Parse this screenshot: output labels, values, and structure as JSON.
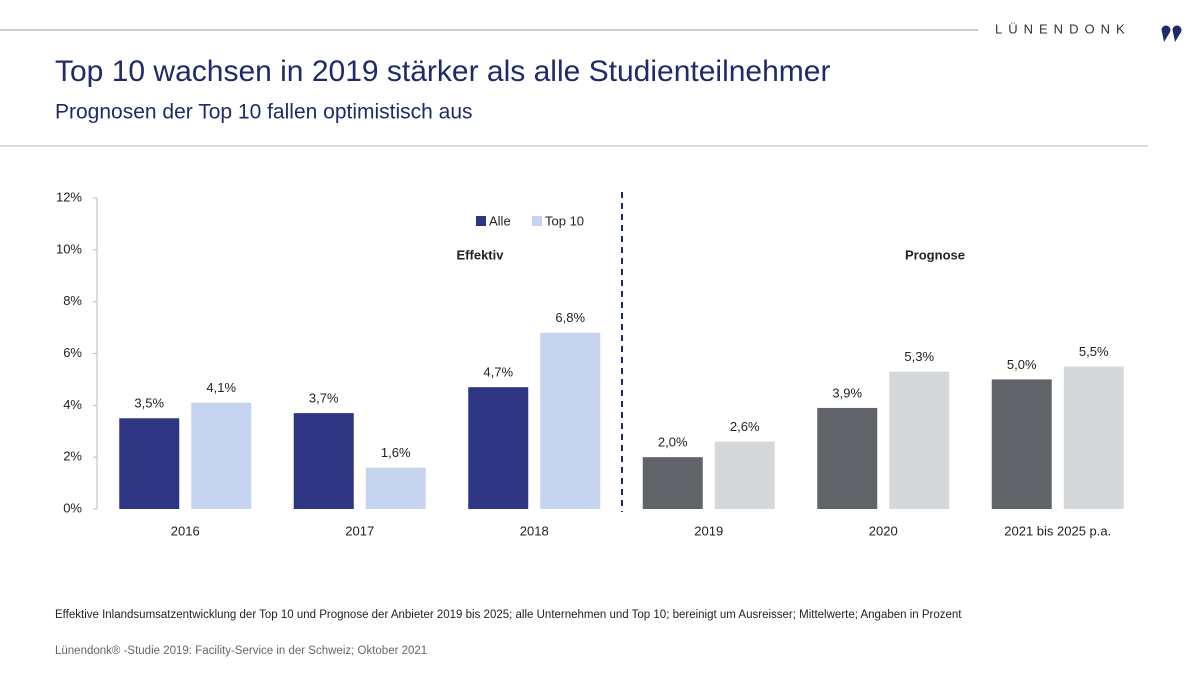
{
  "logo": "LÜNENDONK",
  "footnote": "Effektive Inlandsumsatzentwicklung der Top 10 und Prognose der Anbieter 2019 bis 2025; alle Unternehmen und Top 10; bereinigt um Ausreisser; Mittelwerte; Angaben in Prozent",
  "source": "Lünendonk® -Studie 2019: Facility-Service in der Schweiz; Oktober 2021",
  "chart_data": {
    "type": "bar",
    "title": "Top 10 wachsen in 2019 stärker als alle Studienteilnehmer",
    "subtitle": "Prognosen der Top 10 fallen optimistisch aus",
    "annotations": [
      "Effektiv",
      "Prognose"
    ],
    "categories": [
      "2016",
      "2017",
      "2018",
      "2019",
      "2020",
      "2021 bis 2025 p.a."
    ],
    "series": [
      {
        "name": "Alle",
        "colors": [
          "#2e3583",
          "#2e3583",
          "#2e3583",
          "#616569",
          "#616569",
          "#616569"
        ],
        "values": [
          3.5,
          3.7,
          4.7,
          2.0,
          3.9,
          5.0
        ],
        "value_labels": [
          "3,5%",
          "3,7%",
          "4,7%",
          "2,0%",
          "3,9%",
          "5,0%"
        ]
      },
      {
        "name": "Top 10",
        "colors": [
          "#c6d4f0",
          "#c6d4f0",
          "#c6d4f0",
          "#d5d8da",
          "#d5d8da",
          "#d5d8da"
        ],
        "values": [
          4.1,
          1.6,
          6.8,
          2.6,
          5.3,
          5.5
        ],
        "value_labels": [
          "4,1%",
          "1,6%",
          "6,8%",
          "2,6%",
          "5,3%",
          "5,5%"
        ]
      }
    ],
    "ylim": [
      0,
      12
    ],
    "yticks": [
      {
        "value": 0,
        "label": "0%"
      },
      {
        "value": 2,
        "label": "2%"
      },
      {
        "value": 4,
        "label": "4%"
      },
      {
        "value": 6,
        "label": "6%"
      },
      {
        "value": 8,
        "label": "8%"
      },
      {
        "value": 10,
        "label": "10%"
      },
      {
        "value": 12,
        "label": "12%"
      }
    ]
  }
}
